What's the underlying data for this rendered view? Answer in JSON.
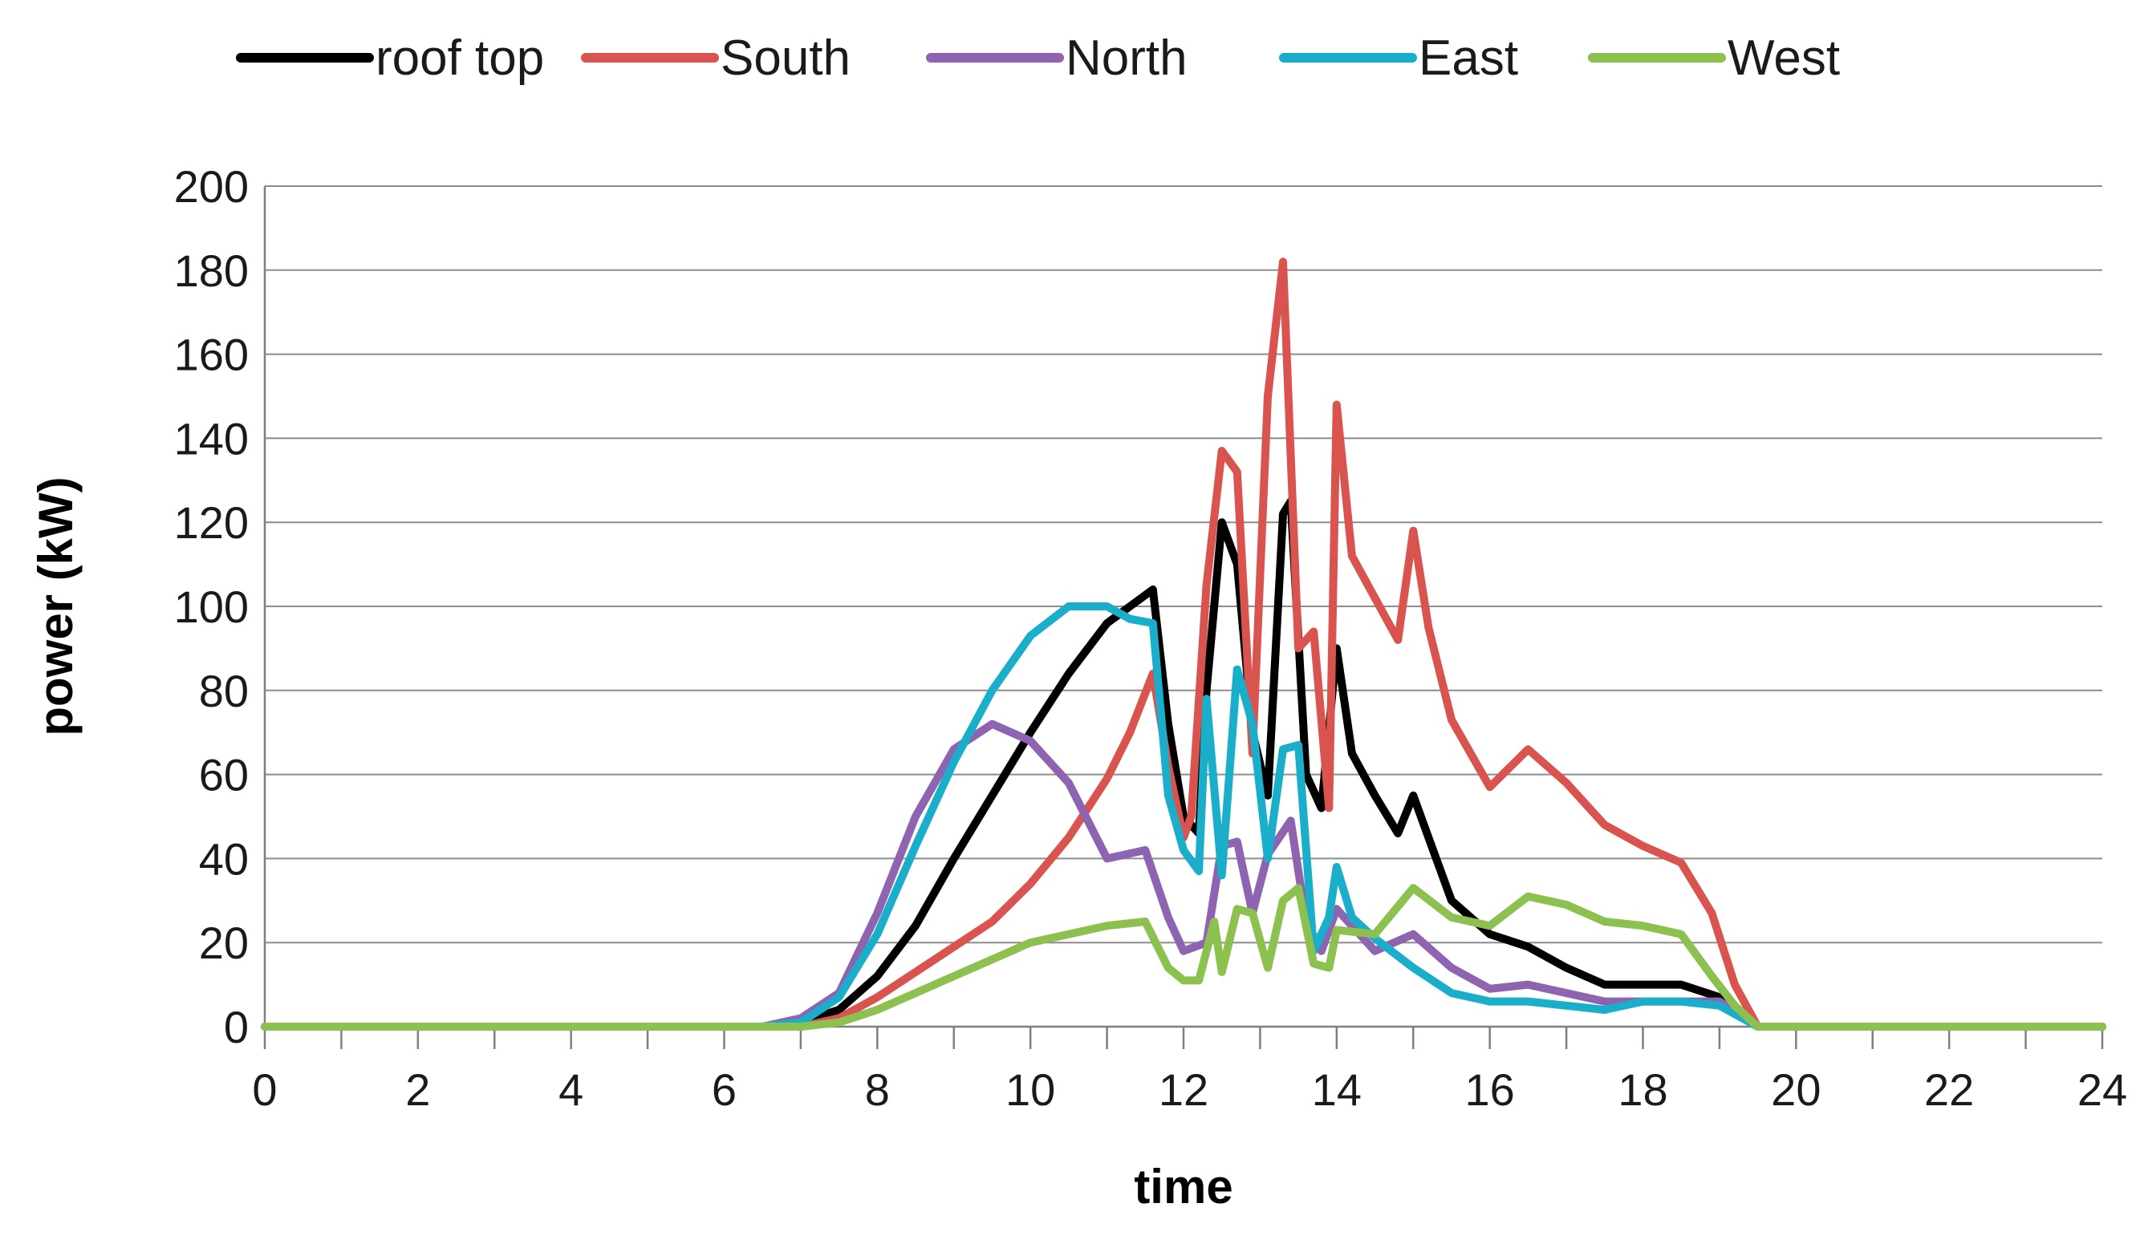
{
  "chart_data": {
    "type": "line",
    "title": "",
    "xlabel": "time",
    "ylabel": "power (kW)",
    "xlim": [
      0,
      24
    ],
    "ylim": [
      0,
      200
    ],
    "x_ticks": [
      0,
      2,
      4,
      6,
      8,
      10,
      12,
      14,
      16,
      18,
      20,
      22,
      24
    ],
    "y_ticks": [
      0,
      20,
      40,
      60,
      80,
      100,
      120,
      140,
      160,
      180,
      200
    ],
    "grid": "horizontal",
    "legend_position": "top",
    "series": [
      {
        "name": "roof top",
        "color": "#000000",
        "x": [
          0,
          6.5,
          7,
          7.5,
          8,
          8.5,
          9,
          9.5,
          10,
          10.5,
          11,
          11.3,
          11.6,
          11.8,
          12,
          12.2,
          12.3,
          12.5,
          12.7,
          12.9,
          13.1,
          13.3,
          13.4,
          13.6,
          13.8,
          14,
          14.2,
          14.5,
          14.8,
          15,
          15.2,
          15.5,
          16,
          16.5,
          17,
          17.5,
          18,
          18.5,
          19,
          19.5,
          20,
          24
        ],
        "y": [
          0,
          0,
          1,
          4,
          12,
          24,
          40,
          55,
          70,
          84,
          96,
          100,
          104,
          72,
          50,
          46,
          80,
          120,
          110,
          70,
          55,
          122,
          125,
          60,
          52,
          90,
          65,
          55,
          46,
          55,
          45,
          30,
          22,
          19,
          14,
          10,
          10,
          10,
          7,
          0,
          0,
          0
        ]
      },
      {
        "name": "South",
        "color": "#d9534f",
        "x": [
          0,
          6.5,
          7,
          7.5,
          8,
          8.5,
          9,
          9.5,
          10,
          10.5,
          11,
          11.3,
          11.6,
          11.8,
          12,
          12.1,
          12.3,
          12.5,
          12.7,
          12.9,
          13.1,
          13.3,
          13.5,
          13.7,
          13.9,
          14,
          14.2,
          14.5,
          14.8,
          15,
          15.2,
          15.5,
          16,
          16.5,
          17,
          17.5,
          18,
          18.5,
          18.9,
          19.2,
          19.5,
          20,
          24
        ],
        "y": [
          0,
          0,
          0,
          2,
          7,
          13,
          19,
          25,
          34,
          45,
          59,
          70,
          84,
          62,
          45,
          50,
          105,
          137,
          132,
          65,
          150,
          182,
          90,
          94,
          52,
          148,
          112,
          102,
          92,
          118,
          95,
          73,
          57,
          66,
          58,
          48,
          43,
          39,
          27,
          10,
          0,
          0,
          0
        ]
      },
      {
        "name": "North",
        "color": "#8e63b0",
        "x": [
          0,
          6.5,
          7,
          7.5,
          8,
          8.5,
          9,
          9.5,
          10,
          10.5,
          11,
          11.5,
          11.8,
          12,
          12.3,
          12.5,
          12.7,
          12.9,
          13.1,
          13.4,
          13.6,
          13.8,
          14,
          14.5,
          15,
          15.5,
          16,
          16.5,
          17,
          17.5,
          18,
          18.5,
          19,
          19.5,
          20,
          24
        ],
        "y": [
          0,
          0,
          2,
          8,
          27,
          50,
          66,
          72,
          68,
          58,
          40,
          42,
          26,
          18,
          20,
          43,
          44,
          27,
          41,
          49,
          25,
          18,
          28,
          18,
          22,
          14,
          9,
          10,
          8,
          6,
          6,
          6,
          6,
          0,
          0,
          0
        ]
      },
      {
        "name": "East",
        "color": "#1aaecb",
        "x": [
          0,
          6.5,
          7,
          7.5,
          8,
          8.5,
          9,
          9.5,
          10,
          10.5,
          11,
          11.3,
          11.6,
          11.8,
          12,
          12.2,
          12.3,
          12.5,
          12.7,
          12.9,
          13.1,
          13.3,
          13.5,
          13.7,
          13.9,
          14,
          14.2,
          14.5,
          15,
          15.5,
          16,
          16.5,
          17,
          17.5,
          18,
          18.5,
          19,
          19.5,
          20,
          24
        ],
        "y": [
          0,
          0,
          1,
          7,
          22,
          43,
          63,
          80,
          93,
          100,
          100,
          97,
          96,
          55,
          42,
          37,
          78,
          36,
          85,
          72,
          40,
          66,
          67,
          18,
          26,
          38,
          26,
          21,
          14,
          8,
          6,
          6,
          5,
          4,
          6,
          6,
          5,
          0,
          0,
          0
        ]
      },
      {
        "name": "West",
        "color": "#8dc14f",
        "x": [
          0,
          6.5,
          7,
          7.5,
          8,
          8.5,
          9,
          9.5,
          10,
          10.5,
          11,
          11.5,
          11.8,
          12,
          12.2,
          12.4,
          12.5,
          12.7,
          12.9,
          13.1,
          13.3,
          13.5,
          13.7,
          13.9,
          14,
          14.5,
          15,
          15.5,
          16,
          16.5,
          17,
          17.5,
          18,
          18.5,
          18.9,
          19.2,
          19.5,
          20,
          24
        ],
        "y": [
          0,
          0,
          0,
          1,
          4,
          8,
          12,
          16,
          20,
          22,
          24,
          25,
          14,
          11,
          11,
          25,
          13,
          28,
          27,
          14,
          30,
          33,
          15,
          14,
          23,
          22,
          33,
          26,
          24,
          31,
          29,
          25,
          24,
          22,
          12,
          5,
          0,
          0,
          0
        ]
      }
    ]
  }
}
